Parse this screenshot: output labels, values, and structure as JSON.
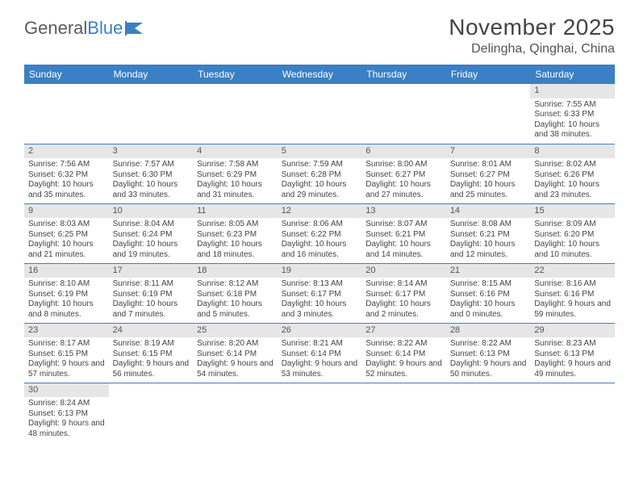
{
  "logo": {
    "text_a": "General",
    "text_b": "Blue"
  },
  "title": "November 2025",
  "location": "Delingha, Qinghai, China",
  "colors": {
    "header_bg": "#3b7fc4",
    "header_fg": "#ffffff",
    "daynum_bg": "#e6e6e6",
    "rule": "#3b7fc4",
    "text": "#444444"
  },
  "fonts": {
    "title_size": 28,
    "location_size": 16,
    "th_size": 12,
    "cell_size": 10
  },
  "weekdays": [
    "Sunday",
    "Monday",
    "Tuesday",
    "Wednesday",
    "Thursday",
    "Friday",
    "Saturday"
  ],
  "weeks": [
    [
      null,
      null,
      null,
      null,
      null,
      null,
      {
        "n": "1",
        "sr": "Sunrise: 7:55 AM",
        "ss": "Sunset: 6:33 PM",
        "dl": "Daylight: 10 hours and 38 minutes."
      }
    ],
    [
      {
        "n": "2",
        "sr": "Sunrise: 7:56 AM",
        "ss": "Sunset: 6:32 PM",
        "dl": "Daylight: 10 hours and 35 minutes."
      },
      {
        "n": "3",
        "sr": "Sunrise: 7:57 AM",
        "ss": "Sunset: 6:30 PM",
        "dl": "Daylight: 10 hours and 33 minutes."
      },
      {
        "n": "4",
        "sr": "Sunrise: 7:58 AM",
        "ss": "Sunset: 6:29 PM",
        "dl": "Daylight: 10 hours and 31 minutes."
      },
      {
        "n": "5",
        "sr": "Sunrise: 7:59 AM",
        "ss": "Sunset: 6:28 PM",
        "dl": "Daylight: 10 hours and 29 minutes."
      },
      {
        "n": "6",
        "sr": "Sunrise: 8:00 AM",
        "ss": "Sunset: 6:27 PM",
        "dl": "Daylight: 10 hours and 27 minutes."
      },
      {
        "n": "7",
        "sr": "Sunrise: 8:01 AM",
        "ss": "Sunset: 6:27 PM",
        "dl": "Daylight: 10 hours and 25 minutes."
      },
      {
        "n": "8",
        "sr": "Sunrise: 8:02 AM",
        "ss": "Sunset: 6:26 PM",
        "dl": "Daylight: 10 hours and 23 minutes."
      }
    ],
    [
      {
        "n": "9",
        "sr": "Sunrise: 8:03 AM",
        "ss": "Sunset: 6:25 PM",
        "dl": "Daylight: 10 hours and 21 minutes."
      },
      {
        "n": "10",
        "sr": "Sunrise: 8:04 AM",
        "ss": "Sunset: 6:24 PM",
        "dl": "Daylight: 10 hours and 19 minutes."
      },
      {
        "n": "11",
        "sr": "Sunrise: 8:05 AM",
        "ss": "Sunset: 6:23 PM",
        "dl": "Daylight: 10 hours and 18 minutes."
      },
      {
        "n": "12",
        "sr": "Sunrise: 8:06 AM",
        "ss": "Sunset: 6:22 PM",
        "dl": "Daylight: 10 hours and 16 minutes."
      },
      {
        "n": "13",
        "sr": "Sunrise: 8:07 AM",
        "ss": "Sunset: 6:21 PM",
        "dl": "Daylight: 10 hours and 14 minutes."
      },
      {
        "n": "14",
        "sr": "Sunrise: 8:08 AM",
        "ss": "Sunset: 6:21 PM",
        "dl": "Daylight: 10 hours and 12 minutes."
      },
      {
        "n": "15",
        "sr": "Sunrise: 8:09 AM",
        "ss": "Sunset: 6:20 PM",
        "dl": "Daylight: 10 hours and 10 minutes."
      }
    ],
    [
      {
        "n": "16",
        "sr": "Sunrise: 8:10 AM",
        "ss": "Sunset: 6:19 PM",
        "dl": "Daylight: 10 hours and 8 minutes."
      },
      {
        "n": "17",
        "sr": "Sunrise: 8:11 AM",
        "ss": "Sunset: 6:19 PM",
        "dl": "Daylight: 10 hours and 7 minutes."
      },
      {
        "n": "18",
        "sr": "Sunrise: 8:12 AM",
        "ss": "Sunset: 6:18 PM",
        "dl": "Daylight: 10 hours and 5 minutes."
      },
      {
        "n": "19",
        "sr": "Sunrise: 8:13 AM",
        "ss": "Sunset: 6:17 PM",
        "dl": "Daylight: 10 hours and 3 minutes."
      },
      {
        "n": "20",
        "sr": "Sunrise: 8:14 AM",
        "ss": "Sunset: 6:17 PM",
        "dl": "Daylight: 10 hours and 2 minutes."
      },
      {
        "n": "21",
        "sr": "Sunrise: 8:15 AM",
        "ss": "Sunset: 6:16 PM",
        "dl": "Daylight: 10 hours and 0 minutes."
      },
      {
        "n": "22",
        "sr": "Sunrise: 8:16 AM",
        "ss": "Sunset: 6:16 PM",
        "dl": "Daylight: 9 hours and 59 minutes."
      }
    ],
    [
      {
        "n": "23",
        "sr": "Sunrise: 8:17 AM",
        "ss": "Sunset: 6:15 PM",
        "dl": "Daylight: 9 hours and 57 minutes."
      },
      {
        "n": "24",
        "sr": "Sunrise: 8:19 AM",
        "ss": "Sunset: 6:15 PM",
        "dl": "Daylight: 9 hours and 56 minutes."
      },
      {
        "n": "25",
        "sr": "Sunrise: 8:20 AM",
        "ss": "Sunset: 6:14 PM",
        "dl": "Daylight: 9 hours and 54 minutes."
      },
      {
        "n": "26",
        "sr": "Sunrise: 8:21 AM",
        "ss": "Sunset: 6:14 PM",
        "dl": "Daylight: 9 hours and 53 minutes."
      },
      {
        "n": "27",
        "sr": "Sunrise: 8:22 AM",
        "ss": "Sunset: 6:14 PM",
        "dl": "Daylight: 9 hours and 52 minutes."
      },
      {
        "n": "28",
        "sr": "Sunrise: 8:22 AM",
        "ss": "Sunset: 6:13 PM",
        "dl": "Daylight: 9 hours and 50 minutes."
      },
      {
        "n": "29",
        "sr": "Sunrise: 8:23 AM",
        "ss": "Sunset: 6:13 PM",
        "dl": "Daylight: 9 hours and 49 minutes."
      }
    ],
    [
      {
        "n": "30",
        "sr": "Sunrise: 8:24 AM",
        "ss": "Sunset: 6:13 PM",
        "dl": "Daylight: 9 hours and 48 minutes."
      },
      null,
      null,
      null,
      null,
      null,
      null
    ]
  ]
}
